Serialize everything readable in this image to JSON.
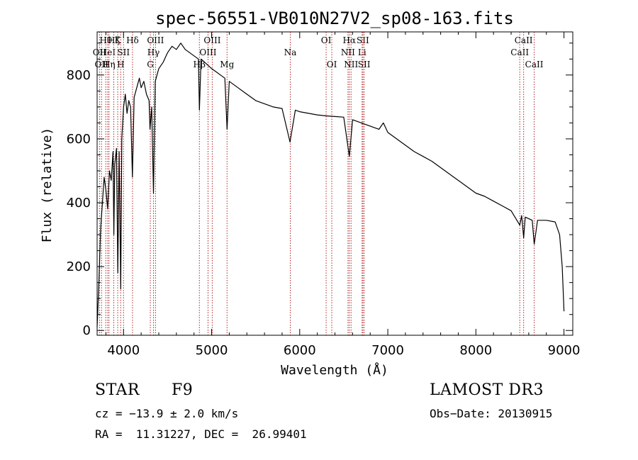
{
  "chart_data": {
    "type": "line",
    "title": "spec-56551-VB010N27V2_sp08-163.fits",
    "xlabel": "Wavelength (Å)",
    "ylabel": "Flux (relative)",
    "xlim": [
      3700,
      9100
    ],
    "ylim": [
      -15,
      935
    ],
    "xticks": [
      4000,
      5000,
      6000,
      7000,
      8000,
      9000
    ],
    "yticks": [
      0,
      200,
      400,
      600,
      800
    ],
    "series": [
      {
        "name": "flux",
        "points": [
          [
            3700,
            10
          ],
          [
            3720,
            150
          ],
          [
            3740,
            320
          ],
          [
            3760,
            400
          ],
          [
            3780,
            480
          ],
          [
            3800,
            440
          ],
          [
            3820,
            380
          ],
          [
            3840,
            500
          ],
          [
            3860,
            470
          ],
          [
            3880,
            560
          ],
          [
            3890,
            300
          ],
          [
            3900,
            520
          ],
          [
            3920,
            570
          ],
          [
            3935,
            180
          ],
          [
            3950,
            560
          ],
          [
            3968,
            130
          ],
          [
            3980,
            600
          ],
          [
            4000,
            700
          ],
          [
            4020,
            740
          ],
          [
            4040,
            680
          ],
          [
            4060,
            720
          ],
          [
            4080,
            700
          ],
          [
            4101,
            480
          ],
          [
            4120,
            730
          ],
          [
            4150,
            760
          ],
          [
            4180,
            790
          ],
          [
            4200,
            760
          ],
          [
            4230,
            780
          ],
          [
            4260,
            740
          ],
          [
            4290,
            720
          ],
          [
            4300,
            630
          ],
          [
            4320,
            700
          ],
          [
            4340,
            430
          ],
          [
            4360,
            780
          ],
          [
            4400,
            820
          ],
          [
            4450,
            840
          ],
          [
            4500,
            870
          ],
          [
            4550,
            890
          ],
          [
            4600,
            880
          ],
          [
            4650,
            900
          ],
          [
            4700,
            880
          ],
          [
            4750,
            870
          ],
          [
            4800,
            860
          ],
          [
            4850,
            850
          ],
          [
            4861,
            690
          ],
          [
            4880,
            850
          ],
          [
            4920,
            840
          ],
          [
            4960,
            830
          ],
          [
            5000,
            820
          ],
          [
            5050,
            810
          ],
          [
            5100,
            800
          ],
          [
            5150,
            790
          ],
          [
            5175,
            630
          ],
          [
            5200,
            780
          ],
          [
            5300,
            760
          ],
          [
            5400,
            740
          ],
          [
            5500,
            720
          ],
          [
            5600,
            710
          ],
          [
            5700,
            700
          ],
          [
            5800,
            695
          ],
          [
            5890,
            590
          ],
          [
            5950,
            690
          ],
          [
            6000,
            685
          ],
          [
            6100,
            680
          ],
          [
            6200,
            675
          ],
          [
            6300,
            672
          ],
          [
            6400,
            670
          ],
          [
            6500,
            668
          ],
          [
            6563,
            545
          ],
          [
            6600,
            660
          ],
          [
            6700,
            650
          ],
          [
            6800,
            640
          ],
          [
            6900,
            630
          ],
          [
            6950,
            650
          ],
          [
            7000,
            620
          ],
          [
            7100,
            600
          ],
          [
            7200,
            580
          ],
          [
            7300,
            560
          ],
          [
            7400,
            545
          ],
          [
            7500,
            530
          ],
          [
            7600,
            510
          ],
          [
            7700,
            490
          ],
          [
            7800,
            470
          ],
          [
            7900,
            450
          ],
          [
            8000,
            430
          ],
          [
            8100,
            420
          ],
          [
            8200,
            405
          ],
          [
            8300,
            390
          ],
          [
            8400,
            375
          ],
          [
            8498,
            330
          ],
          [
            8520,
            360
          ],
          [
            8542,
            290
          ],
          [
            8560,
            355
          ],
          [
            8600,
            350
          ],
          [
            8640,
            345
          ],
          [
            8662,
            270
          ],
          [
            8700,
            345
          ],
          [
            8800,
            345
          ],
          [
            8900,
            340
          ],
          [
            8950,
            300
          ],
          [
            8980,
            200
          ],
          [
            9000,
            60
          ]
        ]
      }
    ],
    "line_ids": [
      {
        "wave": 3727,
        "label": "OII",
        "row": 2
      },
      {
        "wave": 3750,
        "label": "OII",
        "row": 3
      },
      {
        "wave": 3798,
        "label": "Hθ",
        "row": 1
      },
      {
        "wave": 3820,
        "label": "HeI",
        "row": 2
      },
      {
        "wave": 3835,
        "label": "Hη",
        "row": 3
      },
      {
        "wave": 3889,
        "label": "Hζ",
        "row": 1
      },
      {
        "wave": 3934,
        "label": "K",
        "row": 1
      },
      {
        "wave": 3968,
        "label": "H",
        "row": 3
      },
      {
        "wave": 4000,
        "label": "SII",
        "row": 2
      },
      {
        "wave": 4102,
        "label": "Hδ",
        "row": 1
      },
      {
        "wave": 4304,
        "label": "G",
        "row": 3
      },
      {
        "wave": 4340,
        "label": "Hγ",
        "row": 2
      },
      {
        "wave": 4363,
        "label": "OIII",
        "row": 1
      },
      {
        "wave": 4861,
        "label": "Hβ",
        "row": 3
      },
      {
        "wave": 4959,
        "label": "OIII",
        "row": 2
      },
      {
        "wave": 5007,
        "label": "OIII",
        "row": 1
      },
      {
        "wave": 5175,
        "label": "Mg",
        "row": 3
      },
      {
        "wave": 5893,
        "label": "Na",
        "row": 2
      },
      {
        "wave": 6300,
        "label": "OI",
        "row": 1
      },
      {
        "wave": 6364,
        "label": "OI",
        "row": 3
      },
      {
        "wave": 6548,
        "label": "NII",
        "row": 2
      },
      {
        "wave": 6563,
        "label": "Hα",
        "row": 1
      },
      {
        "wave": 6583,
        "label": "NII",
        "row": 3
      },
      {
        "wave": 6708,
        "label": "Li",
        "row": 2
      },
      {
        "wave": 6717,
        "label": "SII",
        "row": 1
      },
      {
        "wave": 6731,
        "label": "SII",
        "row": 3
      },
      {
        "wave": 8498,
        "label": "CaII",
        "row": 2
      },
      {
        "wave": 8542,
        "label": "CaII",
        "row": 1
      },
      {
        "wave": 8662,
        "label": "CaII",
        "row": 3
      }
    ]
  },
  "footer": {
    "object_class": "STAR",
    "subclass": "F9",
    "survey": "LAMOST DR3",
    "cz": "cz = −13.9 ± 2.0 km/s",
    "obs_date": "Obs−Date: 20130915",
    "radec": "RA =  11.31227, DEC =  26.99401"
  },
  "colors": {
    "line_markers": "#b22222",
    "spectrum": "#000000",
    "axes": "#000000"
  }
}
